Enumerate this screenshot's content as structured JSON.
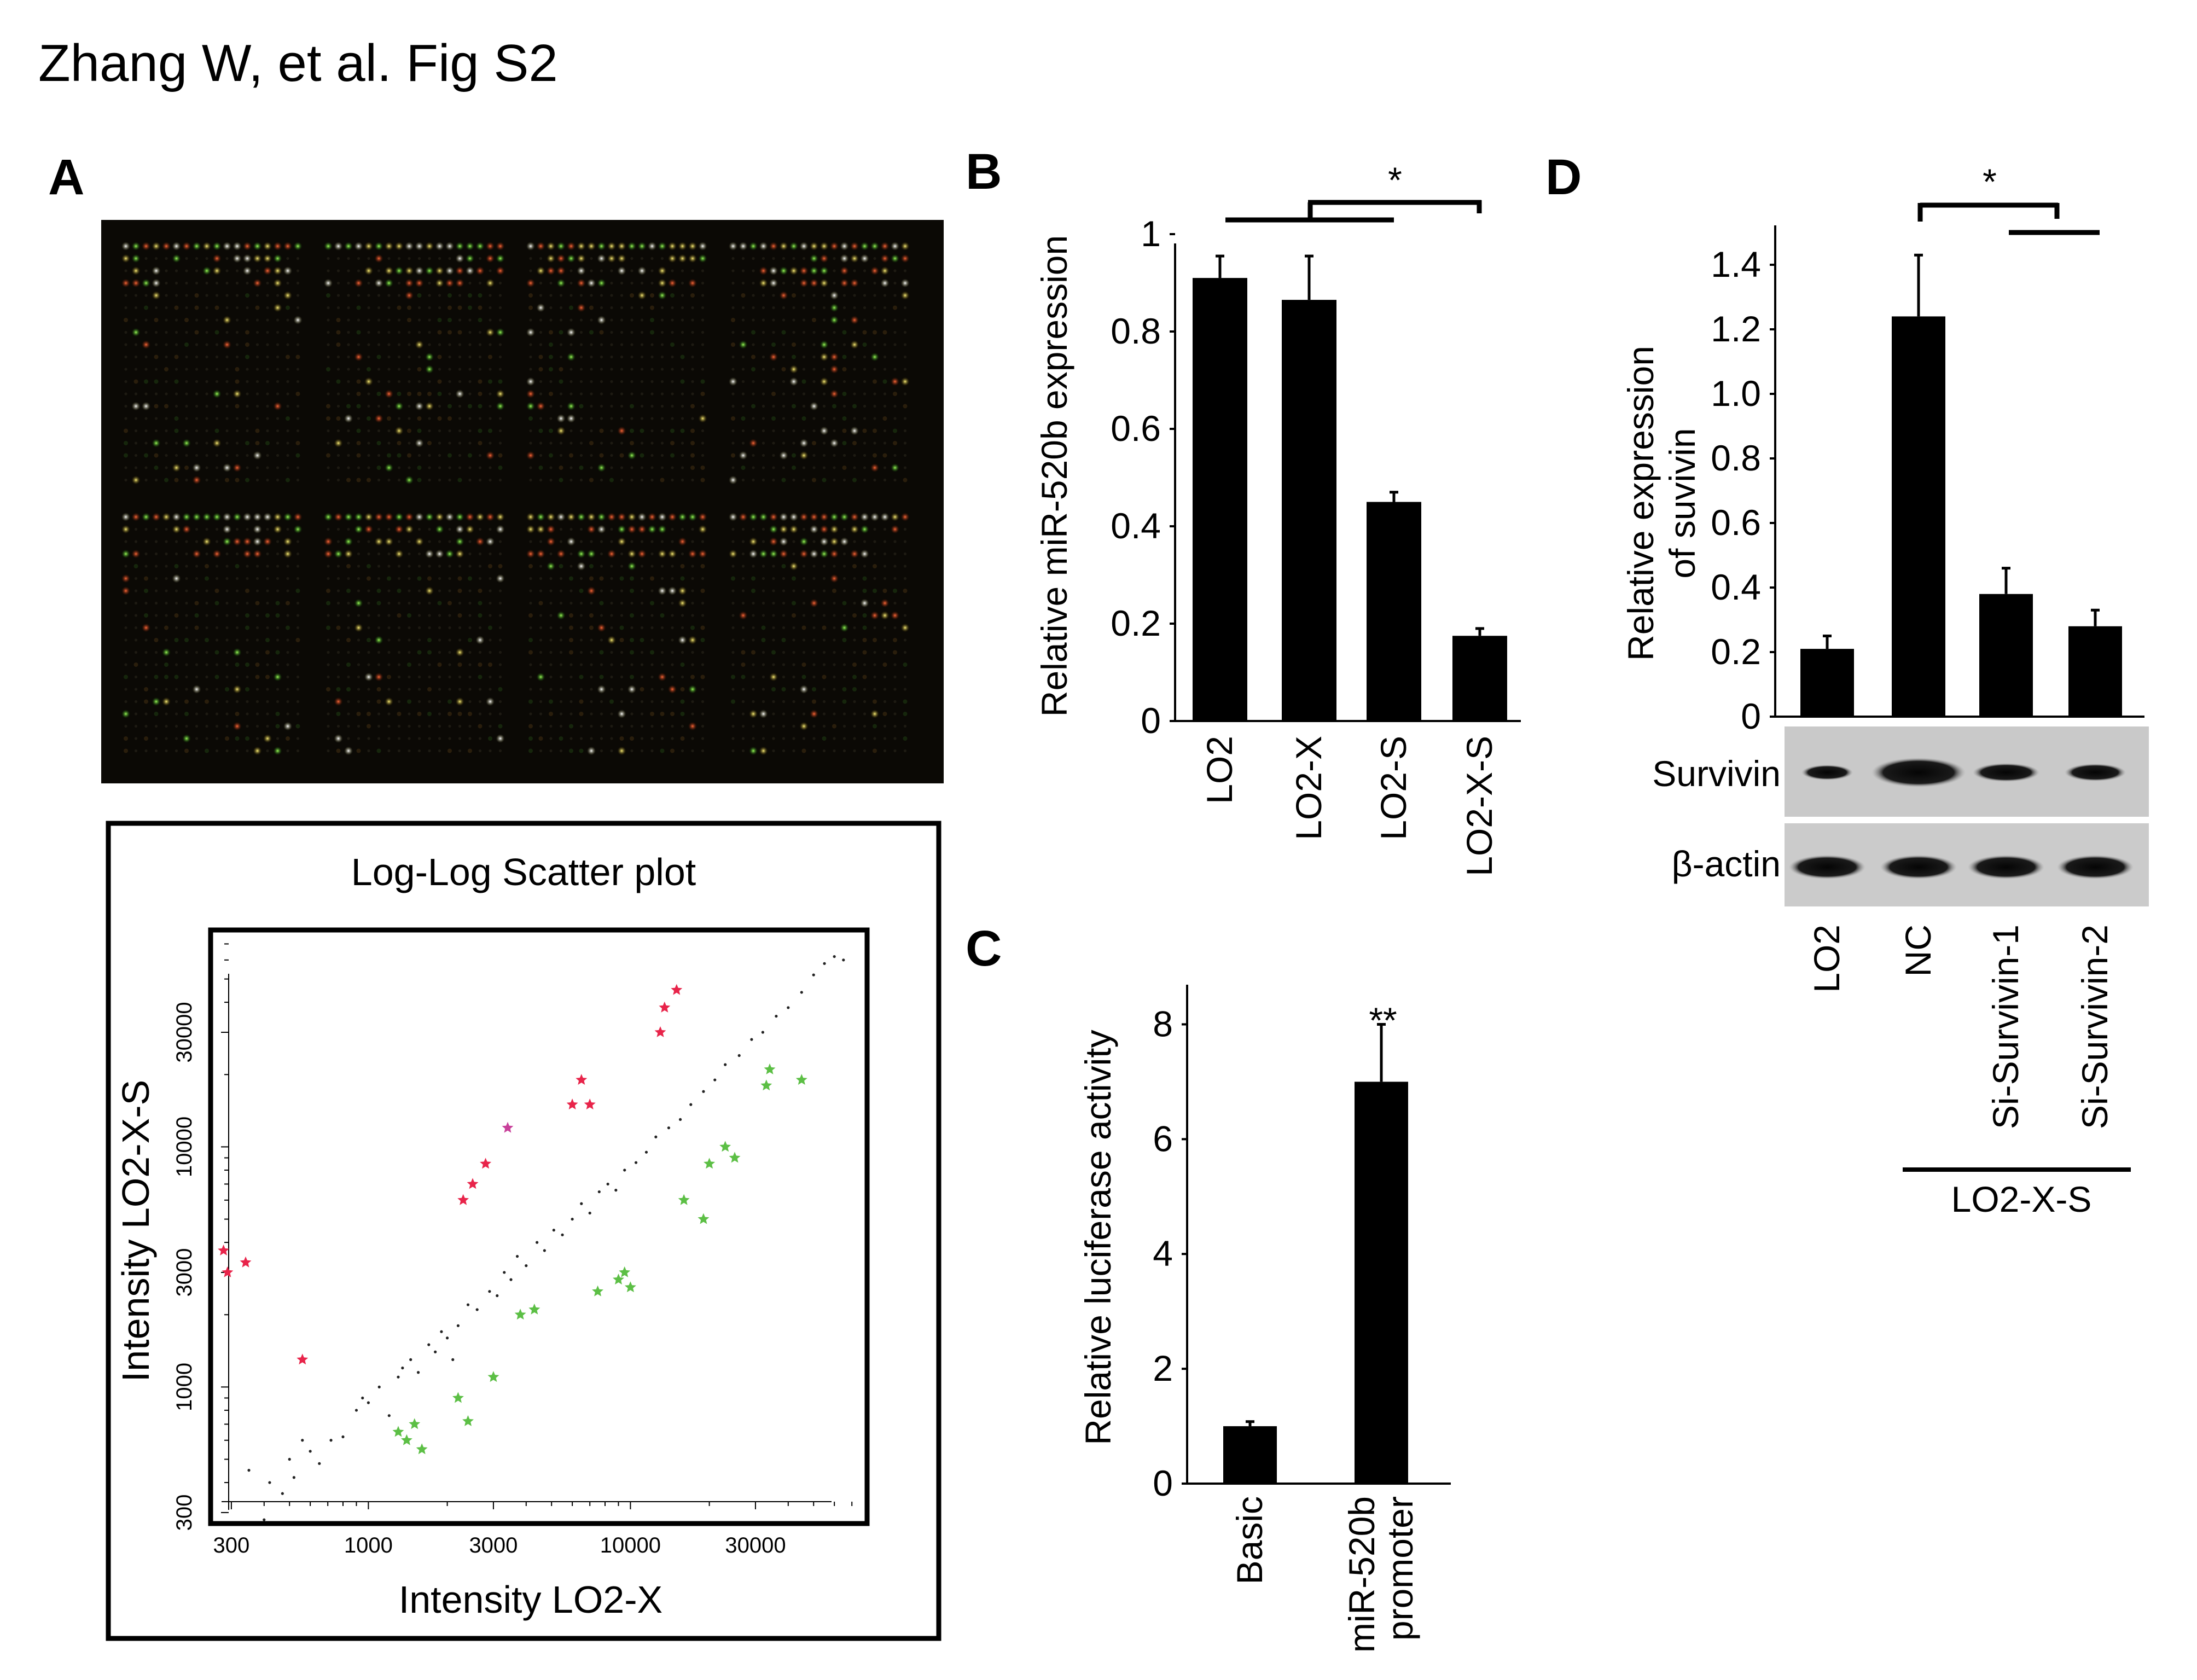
{
  "figure": {
    "header": "Zhang W, et al. Fig S2"
  },
  "panels": {
    "A": {
      "label": "A",
      "scatter": {
        "title": "Log-Log Scatter plot",
        "xlabel": "Intensity LO2-X",
        "ylabel": "Intensity LO2-X-S",
        "xticks": [
          300,
          1000,
          3000,
          10000,
          30000
        ],
        "yticks": [
          300,
          1000,
          3000,
          10000,
          30000
        ],
        "scale": "log-log",
        "colors": {
          "normal": "#000000",
          "up": "#e8244a",
          "down": "#5cbf45"
        }
      }
    },
    "B": {
      "label": "B"
    },
    "C": {
      "label": "C"
    },
    "D": {
      "label": "D",
      "blot_rows": [
        "Survivin",
        "β-actin"
      ],
      "bracket_label": "LO2-X-S"
    }
  },
  "chart_data": [
    {
      "panel": "A",
      "type": "scatter",
      "title": "Log-Log Scatter plot",
      "xlabel": "Intensity LO2-X",
      "ylabel": "Intensity LO2-X-S",
      "xscale": "log",
      "yscale": "log",
      "xlim": [
        250,
        80000
      ],
      "ylim": [
        270,
        80000
      ],
      "series": [
        {
          "name": "",
          "color": "#e8244a",
          "points": [
            [
              280,
              3700
            ],
            [
              290,
              3000
            ],
            [
              340,
              3300
            ],
            [
              560,
              1300
            ],
            [
              2300,
              6000
            ],
            [
              2500,
              7000
            ],
            [
              2800,
              8500
            ],
            [
              6000,
              15000
            ],
            [
              6500,
              19000
            ],
            [
              7000,
              15000
            ],
            [
              13000,
              30000
            ],
            [
              13500,
              38000
            ],
            [
              15000,
              45000
            ]
          ]
        },
        {
          "name": "",
          "color": "#c8409a",
          "points": [
            [
              3400,
              12000
            ]
          ]
        },
        {
          "name": "",
          "color": "#5cbf45",
          "points": [
            [
              1300,
              650
            ],
            [
              1400,
              600
            ],
            [
              1500,
              700
            ],
            [
              1600,
              550
            ],
            [
              2200,
              900
            ],
            [
              2400,
              720
            ],
            [
              3000,
              1100
            ],
            [
              3800,
              2000
            ],
            [
              4300,
              2100
            ],
            [
              7500,
              2500
            ],
            [
              9000,
              2800
            ],
            [
              9500,
              3000
            ],
            [
              10000,
              2600
            ],
            [
              16000,
              6000
            ],
            [
              19000,
              5000
            ],
            [
              20000,
              8500
            ],
            [
              23000,
              10000
            ],
            [
              25000,
              9000
            ],
            [
              33000,
              18000
            ],
            [
              34000,
              21000
            ],
            [
              45000,
              19000
            ]
          ]
        },
        {
          "name": "",
          "color": "#000000",
          "points": [
            [
              350,
              450
            ],
            [
              400,
              280
            ],
            [
              420,
              400
            ],
            [
              470,
              360
            ],
            [
              500,
              500
            ],
            [
              520,
              420
            ],
            [
              560,
              600
            ],
            [
              600,
              540
            ],
            [
              650,
              480
            ],
            [
              720,
              600
            ],
            [
              800,
              620
            ],
            [
              900,
              800
            ],
            [
              950,
              900
            ],
            [
              1000,
              860
            ],
            [
              1100,
              1000
            ],
            [
              1200,
              760
            ],
            [
              1300,
              1100
            ],
            [
              1350,
              1200
            ],
            [
              1450,
              1300
            ],
            [
              1550,
              1150
            ],
            [
              1700,
              1500
            ],
            [
              1800,
              1400
            ],
            [
              1900,
              1700
            ],
            [
              2000,
              1600
            ],
            [
              2100,
              1300
            ],
            [
              2200,
              1800
            ],
            [
              2400,
              2200
            ],
            [
              2600,
              2100
            ],
            [
              2900,
              2500
            ],
            [
              3100,
              2400
            ],
            [
              3300,
              3000
            ],
            [
              3500,
              2800
            ],
            [
              3700,
              3500
            ],
            [
              4000,
              3200
            ],
            [
              4400,
              4000
            ],
            [
              4700,
              3700
            ],
            [
              5100,
              4500
            ],
            [
              5500,
              4300
            ],
            [
              6000,
              5000
            ],
            [
              6500,
              5800
            ],
            [
              7000,
              5300
            ],
            [
              7600,
              6500
            ],
            [
              8200,
              7000
            ],
            [
              8800,
              6600
            ],
            [
              9500,
              8000
            ],
            [
              10500,
              8600
            ],
            [
              11500,
              9500
            ],
            [
              12500,
              11000
            ],
            [
              14000,
              12000
            ],
            [
              15500,
              13000
            ],
            [
              17000,
              15000
            ],
            [
              19000,
              17000
            ],
            [
              21000,
              19000
            ],
            [
              23000,
              22000
            ],
            [
              26000,
              24000
            ],
            [
              29000,
              28000
            ],
            [
              32000,
              30000
            ],
            [
              36000,
              35000
            ],
            [
              40000,
              38000
            ],
            [
              45000,
              44000
            ],
            [
              50000,
              52000
            ],
            [
              55000,
              58000
            ],
            [
              60000,
              62000
            ],
            [
              65000,
              60000
            ]
          ]
        }
      ]
    },
    {
      "panel": "B",
      "type": "bar",
      "title": "",
      "xlabel": "",
      "ylabel": "Relative miR-520b expression",
      "ylim": [
        0,
        1
      ],
      "yticks": [
        "0",
        "0.2",
        "0.4",
        "0.6",
        "0.8",
        "1"
      ],
      "categories": [
        "LO2",
        "LO2-X",
        "LO2-S",
        "LO2-X-S"
      ],
      "values": [
        0.91,
        0.865,
        0.45,
        0.175
      ],
      "errors": [
        0.045,
        0.09,
        0.02,
        0.015
      ],
      "significance": "*"
    },
    {
      "panel": "C",
      "type": "bar",
      "title": "",
      "xlabel": "",
      "ylabel": "Relative luciferase activity",
      "ylim": [
        0,
        8.5
      ],
      "yticks": [
        "0",
        "2",
        "4",
        "6",
        "8"
      ],
      "categories": [
        "Basic",
        "miR-520b\npromoter"
      ],
      "values": [
        1.0,
        7.0
      ],
      "errors": [
        0.08,
        1.0
      ],
      "significance": "**"
    },
    {
      "panel": "D",
      "type": "bar",
      "title": "",
      "xlabel": "",
      "ylabel": "Relative expression\nof suvivin",
      "ylim": [
        0,
        1.5
      ],
      "yticks": [
        "0",
        "0.2",
        "0.4",
        "0.6",
        "0.8",
        "1.0",
        "1.2",
        "1.4"
      ],
      "categories": [
        "LO2",
        "NC",
        "Si-Survivin-1",
        "Si-Survivin-2"
      ],
      "values": [
        0.21,
        1.24,
        0.38,
        0.28
      ],
      "errors": [
        0.04,
        0.19,
        0.08,
        0.05
      ],
      "significance": "*"
    }
  ]
}
